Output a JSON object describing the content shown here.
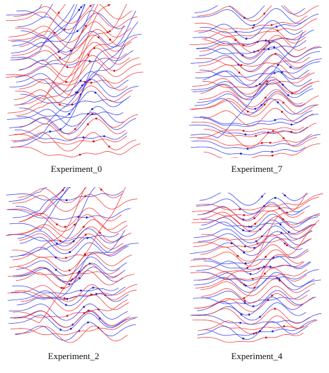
{
  "figure": {
    "panels": [
      {
        "id": "p0",
        "caption": "Experiment_0",
        "seed": 11,
        "chaos": 1.0,
        "dipDepth": 1.0
      },
      {
        "id": "p7",
        "caption": "Experiment_7",
        "seed": 27,
        "chaos": 0.15,
        "dipDepth": 0.9
      },
      {
        "id": "p2",
        "caption": "Experiment_2",
        "seed": 43,
        "chaos": 0.45,
        "dipDepth": 0.9
      },
      {
        "id": "p4",
        "caption": "Experiment_4",
        "seed": 59,
        "chaos": 0.2,
        "dipDepth": 0.85
      }
    ],
    "colors": {
      "blue": "#2b35e6",
      "red": "#ee2a2a",
      "marker_blue": "#1a1acc",
      "marker_red": "#cc1010"
    }
  }
}
